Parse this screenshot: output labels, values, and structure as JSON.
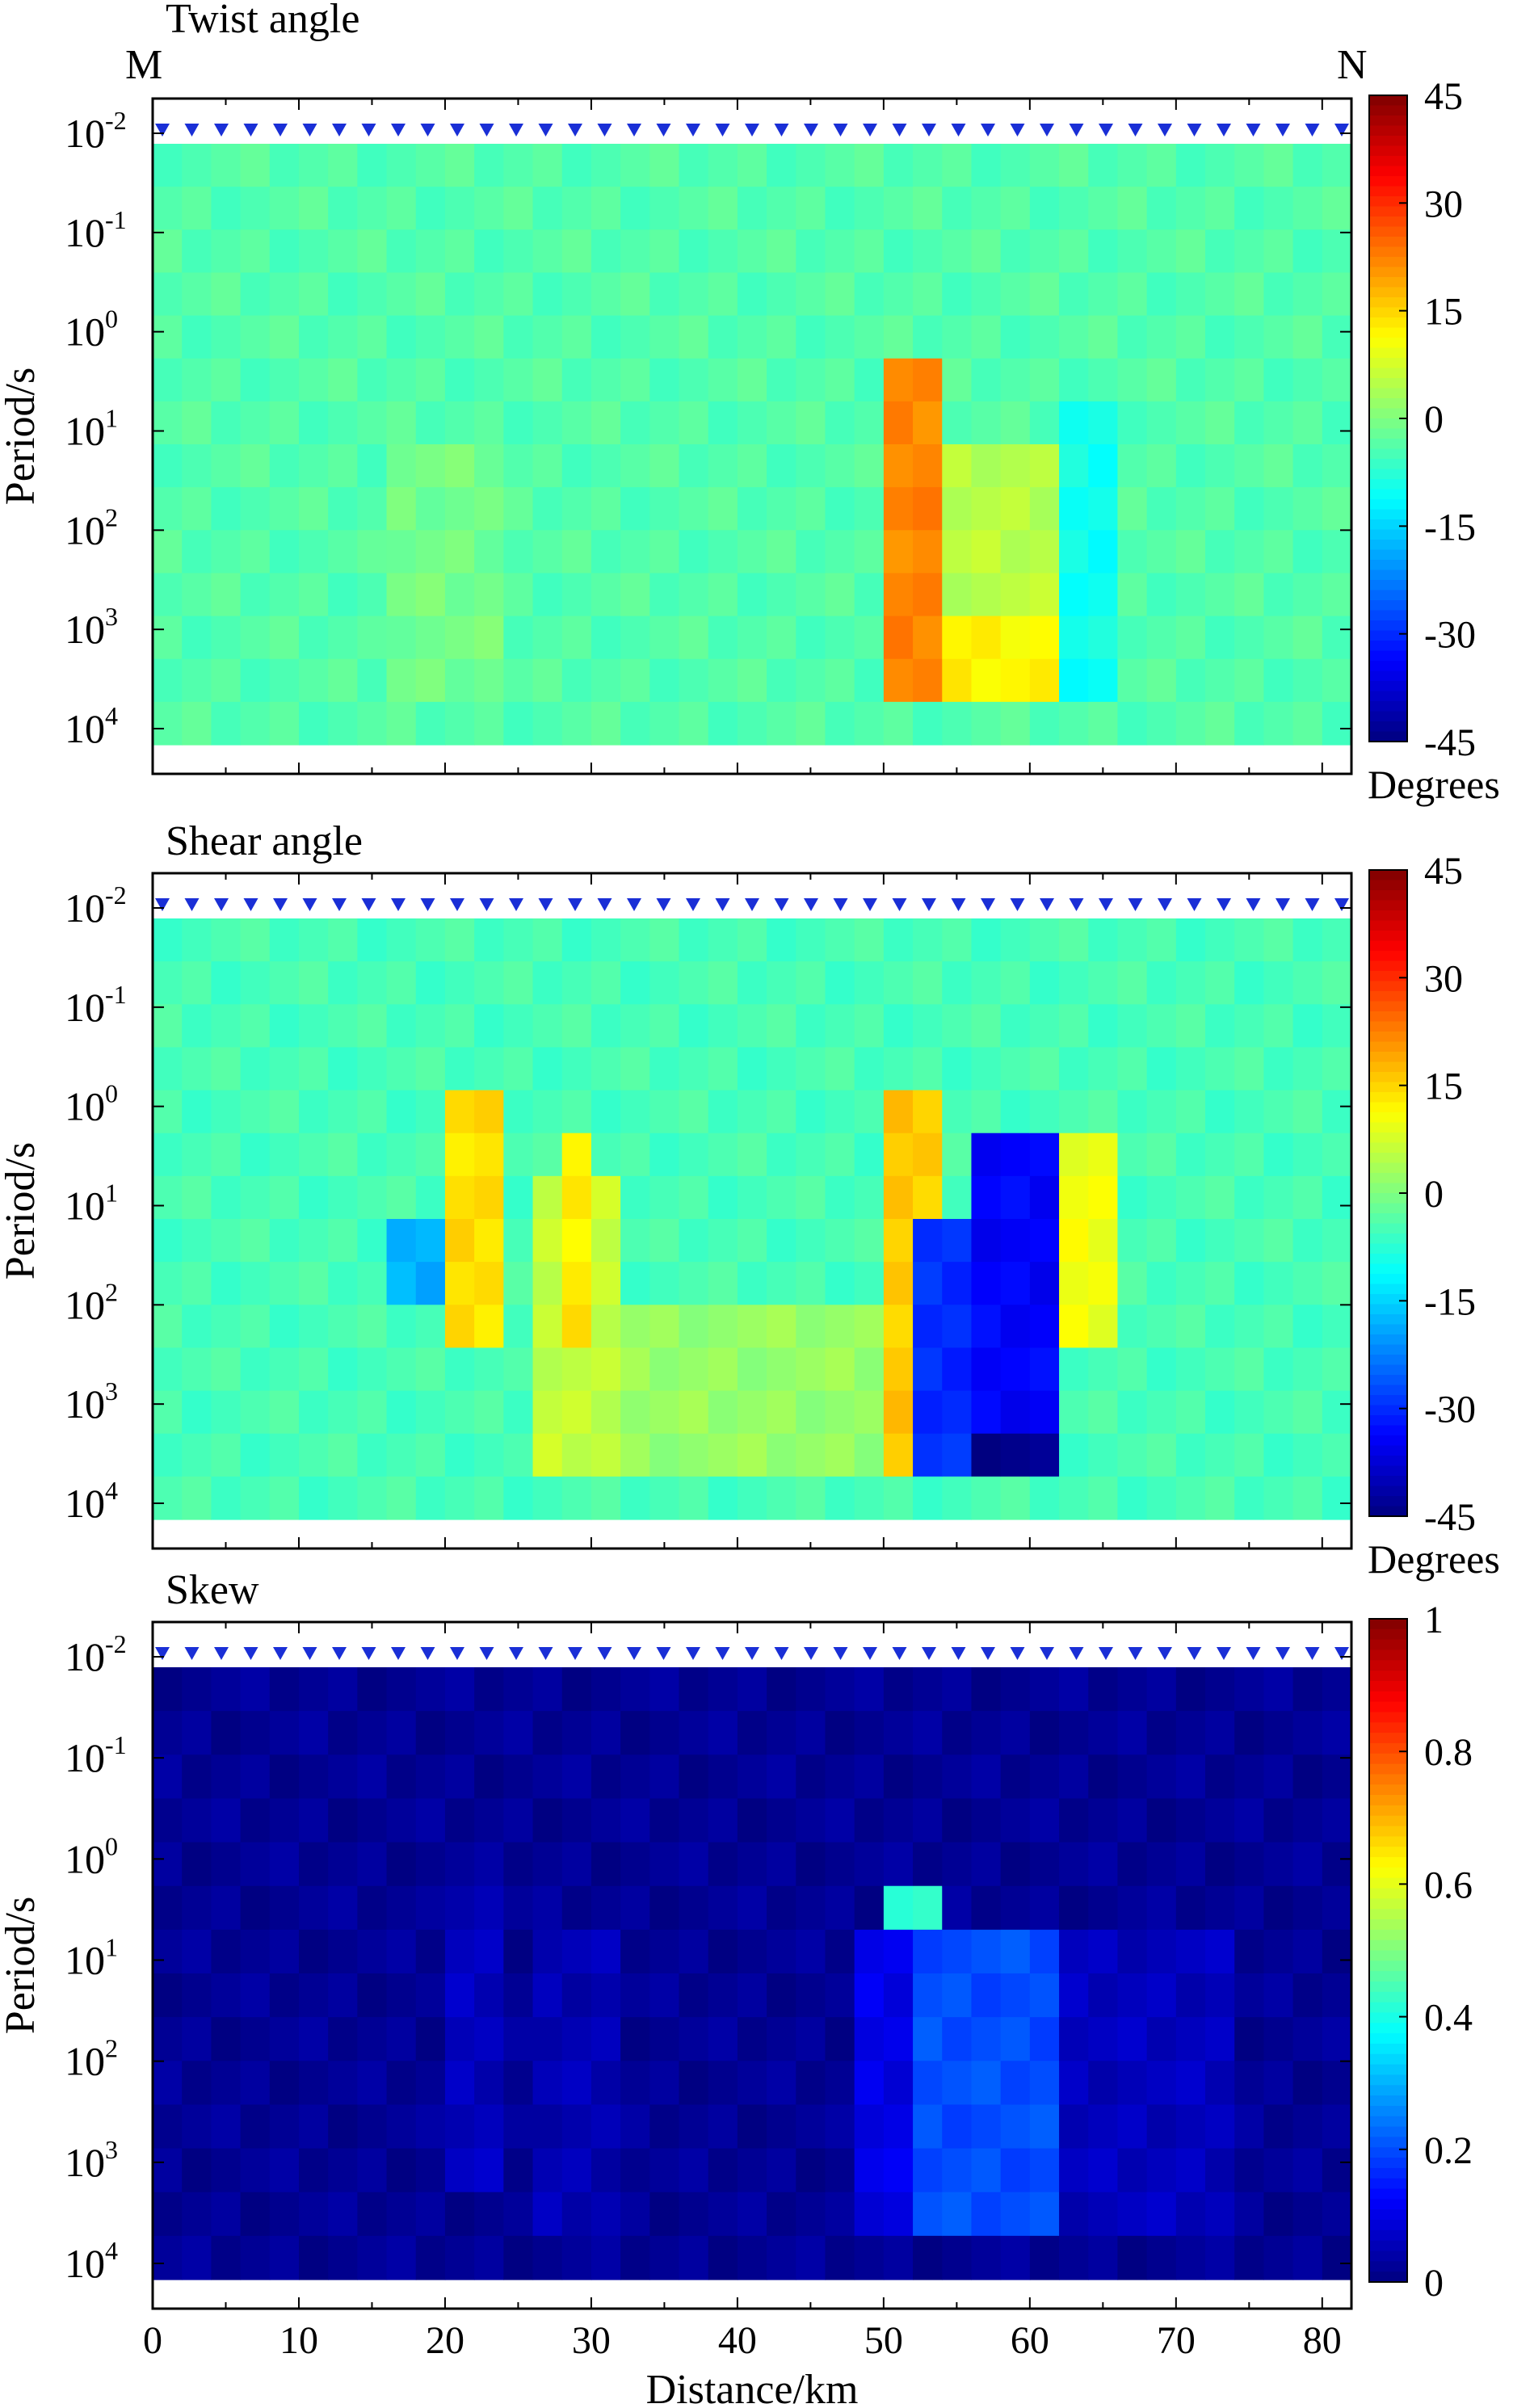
{
  "chart_data": [
    {
      "type": "heatmap",
      "title": "Twist angle",
      "profile_labels": {
        "start": "M",
        "end": "N"
      },
      "ylabel": "Period/s",
      "y_ticks": [
        "10-2",
        "10-1",
        "100",
        "101",
        "102",
        "103",
        "104"
      ],
      "y_ticks_base": "10",
      "y_ticks_exp": [
        "-2",
        "-1",
        "0",
        "1",
        "2",
        "3",
        "4"
      ],
      "y_range_log10": [
        -2,
        4
      ],
      "x_range": [
        0,
        82
      ],
      "colorbar": {
        "range": [
          -45,
          45
        ],
        "tick_values": [
          45,
          30,
          15,
          0,
          -15,
          -30,
          -45
        ],
        "ticks": [
          "45",
          "30",
          "15",
          "0",
          "-15",
          "-30",
          "-45"
        ],
        "label": "Degrees"
      },
      "features": [
        {
          "x": [
            50.5,
            53.5
          ],
          "period_log10": [
            0.5,
            4.0
          ],
          "value": 22
        },
        {
          "x": [
            53.5,
            62.5
          ],
          "period_log10": [
            3.2,
            4.0
          ],
          "value": 12
        },
        {
          "x": [
            53.5,
            62.5
          ],
          "period_log10": [
            1.2,
            3.2
          ],
          "value": 5
        },
        {
          "x": [
            63,
            65
          ],
          "period_log10": [
            0.8,
            3.8
          ],
          "value": -10
        },
        {
          "x": [
            17,
            23
          ],
          "period_log10": [
            1.2,
            3.8
          ],
          "value": -1
        }
      ],
      "background_value": -4
    },
    {
      "type": "heatmap",
      "title": "Shear angle",
      "ylabel": "Period/s",
      "y_ticks": [
        "10-2",
        "10-1",
        "100",
        "101",
        "102",
        "103",
        "104"
      ],
      "y_ticks_base": "10",
      "y_ticks_exp": [
        "-2",
        "-1",
        "0",
        "1",
        "2",
        "3",
        "4"
      ],
      "y_range_log10": [
        -2,
        4
      ],
      "x_range": [
        0,
        82
      ],
      "colorbar": {
        "range": [
          -45,
          45
        ],
        "tick_values": [
          45,
          30,
          15,
          0,
          -15,
          -30,
          -45
        ],
        "ticks": [
          "45",
          "30",
          "15",
          "0",
          "-15",
          "-30",
          "-45"
        ],
        "label": "Degrees"
      },
      "features": [
        {
          "x": [
            21,
            23
          ],
          "period_log10": [
            0.1,
            2.4
          ],
          "value": 14
        },
        {
          "x": [
            27,
            31
          ],
          "period_log10": [
            0.8,
            4.0
          ],
          "value": 6
        },
        {
          "x": [
            28,
            30
          ],
          "period_log10": [
            0.3,
            2.6
          ],
          "value": 13
        },
        {
          "x": [
            17,
            19
          ],
          "period_log10": [
            1.4,
            2.0
          ],
          "value": -18
        },
        {
          "x": [
            50,
            53
          ],
          "period_log10": [
            0.0,
            4.0
          ],
          "value": 16
        },
        {
          "x": [
            53,
            56
          ],
          "period_log10": [
            1.3,
            4.0
          ],
          "value": -30
        },
        {
          "x": [
            56,
            62
          ],
          "period_log10": [
            0.5,
            4.0
          ],
          "value": -34
        },
        {
          "x": [
            57,
            62
          ],
          "period_log10": [
            3.3,
            4.0
          ],
          "value": -44
        },
        {
          "x": [
            62,
            65
          ],
          "period_log10": [
            0.5,
            2.6
          ],
          "value": 10
        },
        {
          "x": [
            33,
            50
          ],
          "period_log10": [
            2.3,
            4.0
          ],
          "value": 2
        }
      ],
      "background_value": -5
    },
    {
      "type": "heatmap",
      "title": "Skew",
      "ylabel": "Period/s",
      "xlabel": "Distance/km",
      "x_ticks": [
        0,
        10,
        20,
        30,
        40,
        50,
        60,
        70,
        80
      ],
      "y_ticks": [
        "10-2",
        "10-1",
        "100",
        "101",
        "102",
        "103",
        "104"
      ],
      "y_ticks_base": "10",
      "y_ticks_exp": [
        "-2",
        "-1",
        "0",
        "1",
        "2",
        "3",
        "4"
      ],
      "y_range_log10": [
        -2,
        4
      ],
      "x_range": [
        0,
        82
      ],
      "colorbar": {
        "range": [
          0,
          1
        ],
        "tick_values": [
          1,
          0.8,
          0.6,
          0.4,
          0.2,
          0
        ],
        "ticks": [
          "1",
          "0.8",
          "0.6",
          "0.4",
          "0.2",
          "0"
        ],
        "label": ""
      },
      "features": [
        {
          "x": [
            51,
            53
          ],
          "period_log10": [
            0.5,
            4.0
          ],
          "value": 0.42
        },
        {
          "x": [
            53,
            63
          ],
          "period_log10": [
            0.9,
            4.0
          ],
          "value": 0.2
        },
        {
          "x": [
            49,
            51
          ],
          "period_log10": [
            0.9,
            4.0
          ],
          "value": 0.1
        },
        {
          "x": [
            63,
            73
          ],
          "period_log10": [
            0.9,
            3.8
          ],
          "value": 0.06
        },
        {
          "x": [
            20,
            23
          ],
          "period_log10": [
            0.3,
            3.5
          ],
          "value": 0.06
        },
        {
          "x": [
            27,
            31
          ],
          "period_log10": [
            0.8,
            3.8
          ],
          "value": 0.05
        }
      ],
      "background_value": 0.02
    }
  ]
}
